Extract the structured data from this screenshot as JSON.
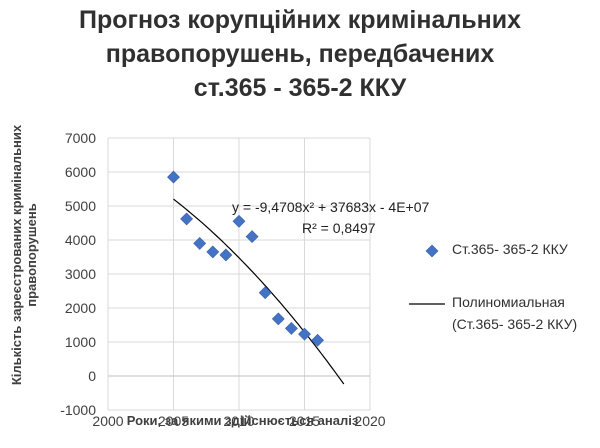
{
  "chart_data": {
    "type": "scatter",
    "title_lines": [
      "Прогноз корупційних кримінальних",
      "правопорушень, передбачених",
      "ст.365 - 365-2 ККУ"
    ],
    "xlabel": "Роки, за якими здійснюється аналіз",
    "ylabel": "Кількість зареєстрованих кримінальних правопорушень",
    "xlim": [
      2000,
      2020
    ],
    "ylim": [
      -1000,
      7000
    ],
    "x_ticks": [
      2000,
      2005,
      2010,
      2015,
      2020
    ],
    "y_ticks": [
      -1000,
      0,
      1000,
      2000,
      3000,
      4000,
      5000,
      6000,
      7000
    ],
    "x_tick_labels": [
      "2000",
      "2005",
      "2010",
      "2015",
      "2020"
    ],
    "y_tick_labels": [
      "-1000",
      "0",
      "1000",
      "2000",
      "3000",
      "4000",
      "5000",
      "6000",
      "7000"
    ],
    "grid": "major x and y",
    "legend_placement": "right",
    "series": [
      {
        "name": "Ст.365- 365-2 ККУ",
        "marker": "diamond",
        "color": "#4472c4",
        "x": [
          2005,
          2006,
          2007,
          2008,
          2009,
          2010,
          2011,
          2012,
          2013,
          2014,
          2015,
          2016
        ],
        "y": [
          5850,
          4620,
          3900,
          3650,
          3560,
          4550,
          4100,
          2450,
          1680,
          1400,
          1230,
          1050
        ]
      }
    ],
    "trendline": {
      "name": "Полиномиальная",
      "name_line2": "(Ст.365- 365-2 ККУ)",
      "type": "polynomial",
      "order": 2,
      "color": "#000000",
      "x_range": [
        2005,
        2018
      ],
      "equation": "y = -9,4708x² + 37683x - 4E+07",
      "r_squared": "R² = 0,8497"
    }
  }
}
